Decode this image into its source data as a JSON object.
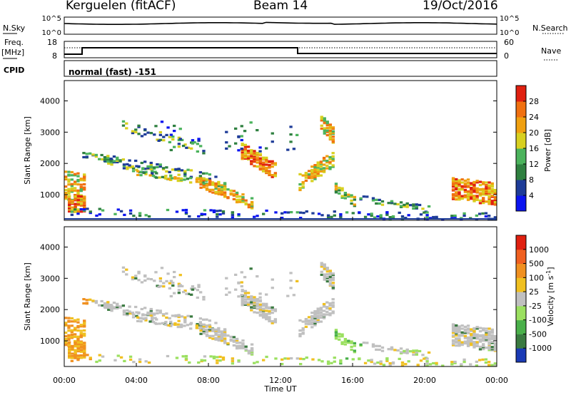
{
  "header": {
    "station": "Kerguelen (fitACF)",
    "beam": "Beam 14",
    "date": "19/Oct/2016"
  },
  "noise_panel": {
    "left_label": "N.Sky",
    "right_label": "N.Search",
    "tick_top": "10^5",
    "tick_bottom": "10^0"
  },
  "freq_panel": {
    "left_label_1": "Freq.",
    "left_label_2": "[MHz]",
    "left_tick_top": "18",
    "left_tick_bottom": "8",
    "right_label": "Nave",
    "right_tick_top": "60",
    "right_tick_bottom": "0"
  },
  "cpid_panel": {
    "label": "CPID",
    "program": "normal (fast) -151"
  },
  "chart_data": [
    {
      "type": "heatmap",
      "title": "Power",
      "ylabel": "Slant Range [km]",
      "ylim": [
        180,
        4650
      ],
      "yticks": [
        "1000",
        "2000",
        "3000",
        "4000"
      ],
      "colorbar_label": "Power [dB]",
      "colorbar_ticks": [
        "4",
        "8",
        "12",
        "16",
        "20",
        "24",
        "28"
      ],
      "colorbar_colors": [
        "#0b14f0",
        "#1e3c98",
        "#2f8040",
        "#4bb35c",
        "#d8d020",
        "#f0a010",
        "#f07010",
        "#e02010"
      ]
    },
    {
      "type": "heatmap",
      "title": "Velocity",
      "ylabel": "Slant Range [km]",
      "ylim": [
        180,
        4650
      ],
      "yticks": [
        "1000",
        "2000",
        "3000",
        "4000"
      ],
      "colorbar_label": "Velocity [m s^-1]",
      "colorbar_ticks": [
        "1000",
        "500",
        "100",
        "25",
        "-25",
        "-100",
        "-500",
        "-1000"
      ],
      "colorbar_colors": [
        "#1a3ab5",
        "#3a7a40",
        "#4ab04a",
        "#9be060",
        "#c0c0c0",
        "#f0c020",
        "#f09020",
        "#f06020",
        "#e02010"
      ],
      "xlabel": "Time UT",
      "xticks": [
        "00:00",
        "04:00",
        "08:00",
        "12:00",
        "16:00",
        "20:00",
        "00:00"
      ]
    }
  ]
}
